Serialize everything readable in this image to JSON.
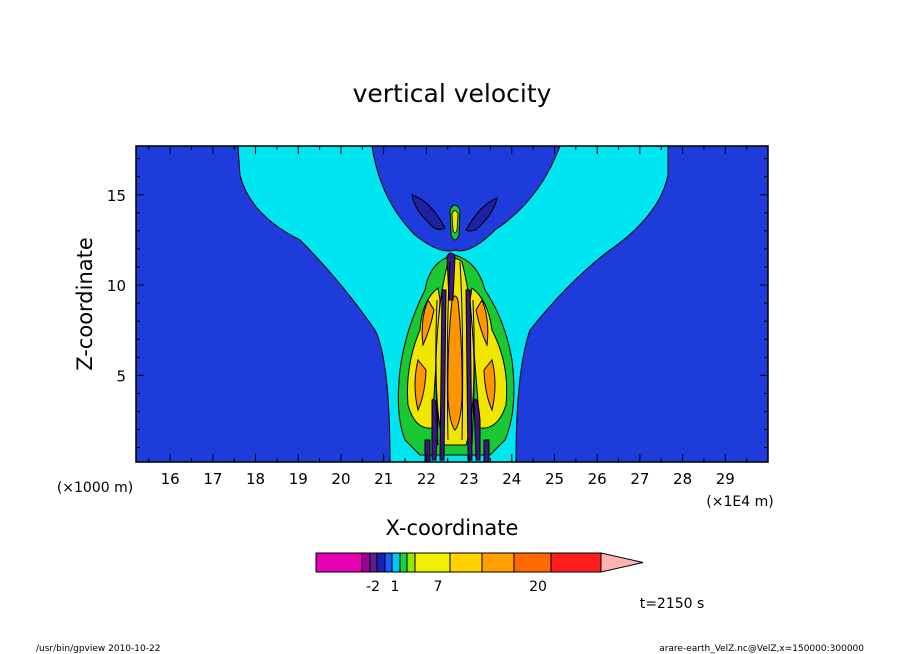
{
  "chart_data": {
    "type": "heatmap",
    "title": "vertical velocity",
    "xlabel": "X-coordinate",
    "ylabel": "Z-coordinate",
    "x_unit_left": "(×1000 m)",
    "x_unit_right": "(×1E4 m)",
    "xlim": [
      15.2,
      30.0
    ],
    "ylim": [
      0.2,
      17.7
    ],
    "x_ticks": [
      "16",
      "17",
      "18",
      "19",
      "20",
      "21",
      "22",
      "23",
      "24",
      "25",
      "26",
      "27",
      "28",
      "29"
    ],
    "y_ticks": [
      "5",
      "10",
      "15"
    ],
    "time_label": "t=2150 s",
    "colorbar": {
      "tick_labels": [
        "-2",
        "1",
        "7",
        "20"
      ],
      "colors": [
        "#e600b4",
        "#a0009a",
        "#5a2090",
        "#1e1eb4",
        "#1e5aff",
        "#00c8f0",
        "#19d23c",
        "#96e600",
        "#f0f000",
        "#ffd200",
        "#ffa000",
        "#ff6a00",
        "#ff1e1e",
        "#ff7878",
        "#ffb4b4"
      ]
    },
    "field_regions": [
      {
        "level": "background",
        "color": "#1e3cdc"
      },
      {
        "level": "near-zero",
        "color": "#00e6f0"
      },
      {
        "level": "weak-updraft",
        "color": "#19c832"
      },
      {
        "level": "updraft-1",
        "color": "#f0e600"
      },
      {
        "level": "updraft-2",
        "color": "#ff9600"
      },
      {
        "level": "downdraft",
        "color": "#5a2090"
      }
    ]
  },
  "footer": {
    "left": "/usr/bin/gpview  2010-10-22",
    "right": "arare-earth_VelZ.nc@VelZ,x=150000:300000"
  }
}
